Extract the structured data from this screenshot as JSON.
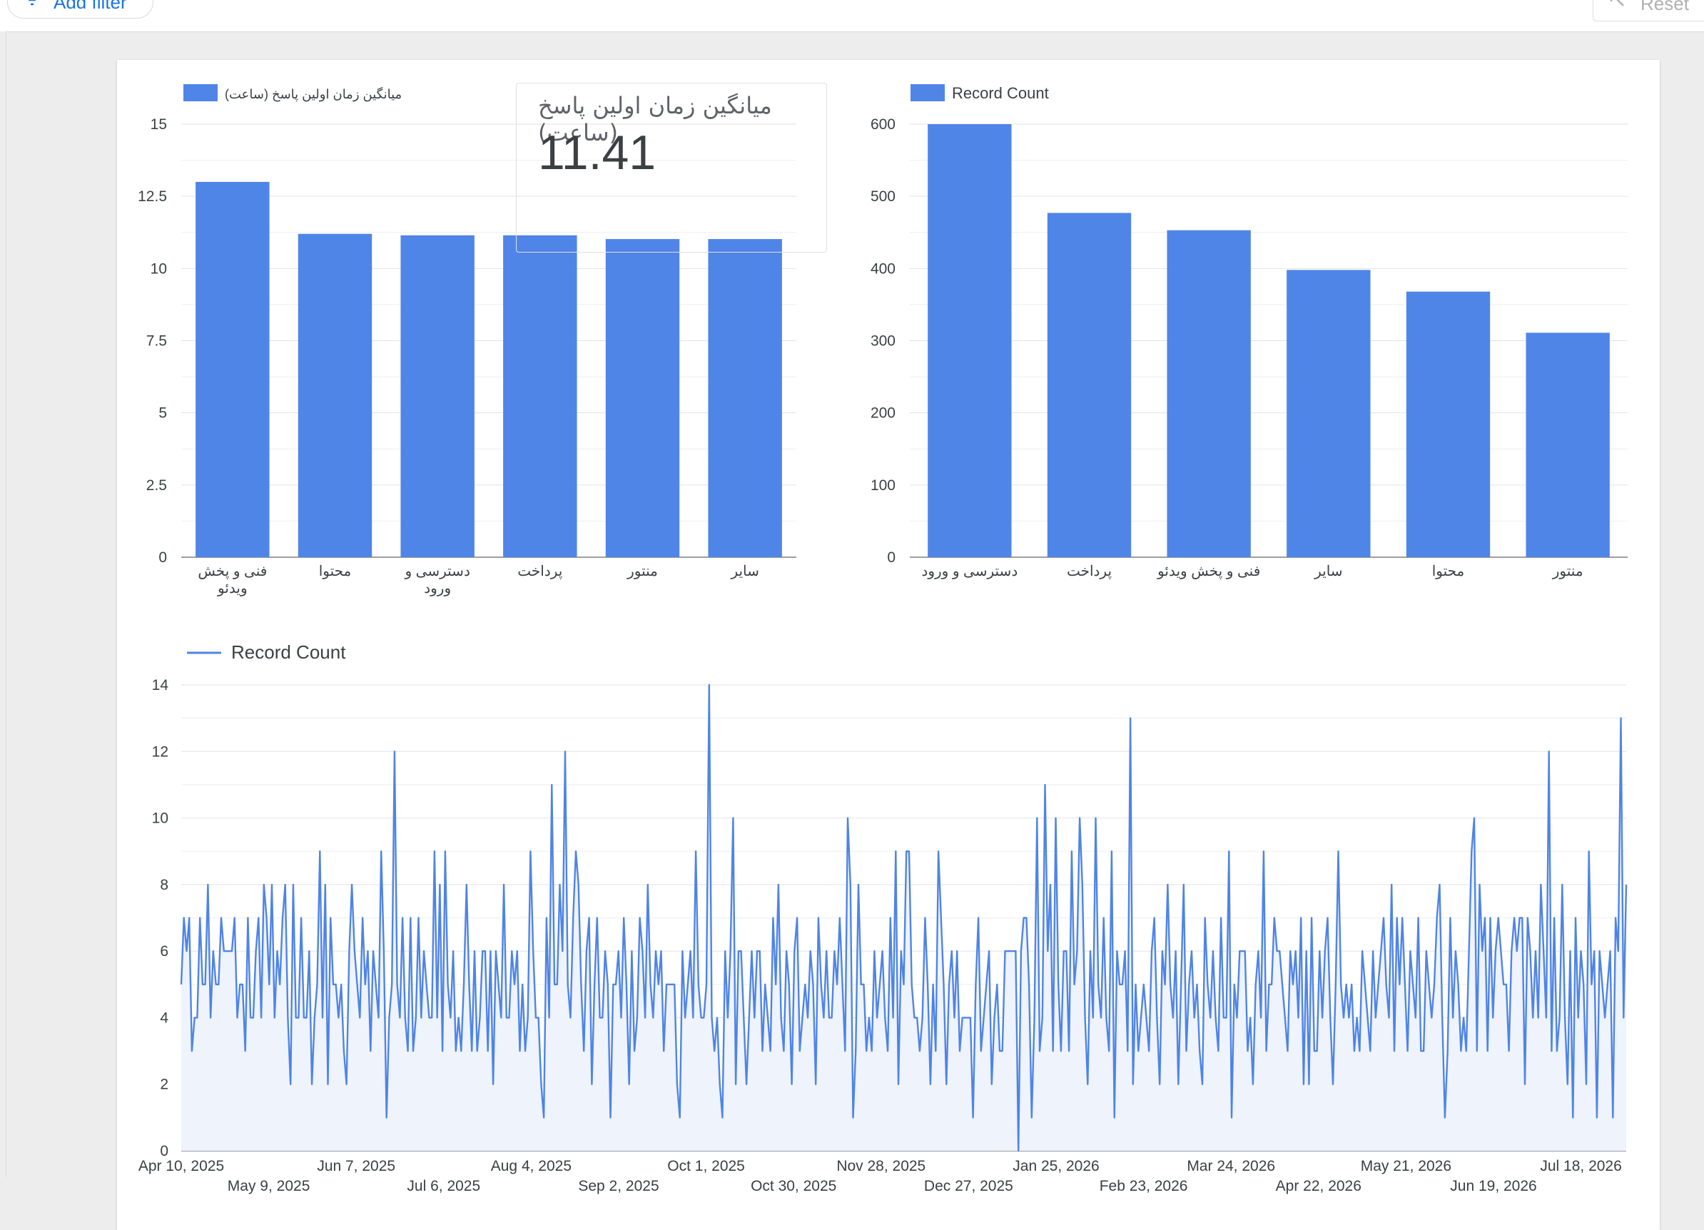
{
  "toolbar": {
    "add_filter_label": "Add filter",
    "reset_label": "Reset"
  },
  "scorecard": {
    "label": "میانگین زمان اولین پاسخ (ساعت)",
    "value": "11.41"
  },
  "colors": {
    "bar": "#5085e8",
    "line": "#4f84e6",
    "area": "#eef3fc",
    "grid": "#e2e2e2",
    "axis": "#9e9e9e",
    "text": "#3c4043"
  },
  "chart_data": [
    {
      "type": "bar",
      "legend": "میانگین زمان اولین پاسخ (ساعت)",
      "categories": [
        "فنی و پخش ویدئو",
        "محتوا",
        "دسترسی و ورود",
        "پرداخت",
        "منتور",
        "سایر"
      ],
      "values": [
        13.0,
        11.2,
        11.15,
        11.15,
        11.02,
        11.02
      ],
      "ylim": [
        0,
        15
      ],
      "yticks": [
        0,
        2.5,
        5,
        7.5,
        10,
        12.5,
        15
      ],
      "legend_position": "top-left",
      "grid": true
    },
    {
      "type": "bar",
      "legend": "Record Count",
      "categories": [
        "دسترسی و ورود",
        "پرداخت",
        "فنی و پخش ویدئو",
        "سایر",
        "محتوا",
        "منتور"
      ],
      "values": [
        600,
        477,
        453,
        398,
        368,
        311
      ],
      "ylim": [
        0,
        600
      ],
      "yticks": [
        0,
        100,
        200,
        300,
        400,
        500,
        600
      ],
      "legend_position": "top-left",
      "grid": true
    },
    {
      "type": "area",
      "legend": "Record Count",
      "x_start": "2025-04-10",
      "x_end": "2026-08-02",
      "ylim": [
        0,
        14
      ],
      "yticks": [
        0,
        2,
        4,
        6,
        8,
        10,
        12,
        14
      ],
      "xticks_row1": [
        "Apr 10, 2025",
        "Jun 7, 2025",
        "Aug 4, 2025",
        "Oct 1, 2025",
        "Nov 28, 2025",
        "Jan 25, 2026",
        "Mar 24, 2026",
        "May 21, 2026",
        "Jul 18, 2026"
      ],
      "xticks_row2": [
        "May 9, 2025",
        "Jul 6, 2025",
        "Sep 2, 2025",
        "Oct 30, 2025",
        "Dec 27, 2025",
        "Feb 23, 2026",
        "Apr 22, 2026",
        "Jun 19, 2026"
      ],
      "values": [
        5,
        7,
        6,
        7,
        3,
        4,
        4,
        7,
        5,
        5,
        8,
        4,
        6,
        5,
        5,
        7,
        6,
        6,
        6,
        6,
        7,
        4,
        5,
        5,
        3,
        7,
        4,
        4,
        6,
        7,
        4,
        8,
        7,
        5,
        8,
        4,
        6,
        5,
        7,
        8,
        4,
        2,
        8,
        4,
        4,
        7,
        4,
        4,
        6,
        2,
        4,
        5,
        9,
        4,
        8,
        2,
        7,
        5,
        5,
        4,
        5,
        3,
        2,
        6,
        8,
        6,
        5,
        4,
        7,
        5,
        6,
        3,
        6,
        5,
        4,
        9,
        6,
        1,
        4,
        5,
        12,
        5,
        4,
        7,
        4,
        3,
        7,
        3,
        4,
        7,
        4,
        6,
        5,
        4,
        4,
        9,
        4,
        8,
        3,
        9,
        5,
        4,
        6,
        3,
        4,
        3,
        5,
        8,
        5,
        3,
        6,
        3,
        4,
        6,
        6,
        3,
        6,
        2,
        6,
        5,
        4,
        8,
        4,
        4,
        6,
        5,
        6,
        3,
        5,
        3,
        4,
        9,
        6,
        4,
        4,
        2,
        1,
        7,
        4,
        11,
        5,
        5,
        8,
        6,
        12,
        5,
        4,
        7,
        9,
        8,
        5,
        3,
        6,
        7,
        2,
        5,
        7,
        4,
        4,
        6,
        5,
        1,
        5,
        5,
        6,
        4,
        7,
        5,
        2,
        6,
        3,
        4,
        7,
        6,
        4,
        8,
        5,
        4,
        6,
        5,
        6,
        3,
        5,
        5,
        5,
        5,
        2,
        1,
        6,
        4,
        5,
        6,
        4,
        9,
        5,
        4,
        4,
        5,
        14,
        4,
        3,
        4,
        2,
        1,
        6,
        4,
        6,
        10,
        2,
        6,
        6,
        4,
        2,
        4,
        6,
        4,
        6,
        6,
        3,
        5,
        4,
        3,
        7,
        5,
        8,
        4,
        3,
        6,
        5,
        2,
        6,
        7,
        3,
        4,
        5,
        4,
        6,
        5,
        2,
        7,
        5,
        4,
        6,
        4,
        4,
        6,
        5,
        7,
        5,
        3,
        10,
        8,
        1,
        3,
        8,
        5,
        5,
        3,
        4,
        3,
        6,
        4,
        5,
        6,
        4,
        3,
        7,
        4,
        9,
        2,
        6,
        5,
        9,
        9,
        5,
        4,
        4,
        3,
        4,
        7,
        5,
        2,
        5,
        3,
        9,
        7,
        5,
        2,
        5,
        6,
        4,
        6,
        3,
        4,
        4,
        4,
        4,
        1,
        5,
        7,
        3,
        4,
        5,
        6,
        2,
        4,
        5,
        3,
        3,
        6,
        6,
        6,
        6,
        6,
        0,
        6,
        7,
        7,
        5,
        1,
        4,
        10,
        3,
        4,
        11,
        6,
        8,
        3,
        10,
        5,
        3,
        6,
        6,
        3,
        9,
        5,
        6,
        10,
        8,
        4,
        2,
        6,
        4,
        10,
        5,
        4,
        7,
        4,
        3,
        9,
        1,
        6,
        5,
        5,
        6,
        3,
        13,
        2,
        5,
        3,
        4,
        5,
        4,
        3,
        6,
        7,
        4,
        2,
        6,
        5,
        8,
        5,
        4,
        6,
        2,
        5,
        8,
        3,
        5,
        6,
        4,
        5,
        3,
        2,
        7,
        5,
        4,
        6,
        4,
        3,
        7,
        4,
        4,
        9,
        1,
        5,
        4,
        6,
        6,
        6,
        3,
        4,
        2,
        5,
        6,
        4,
        9,
        3,
        5,
        5,
        7,
        6,
        6,
        5,
        4,
        3,
        6,
        5,
        6,
        4,
        7,
        2,
        6,
        2,
        7,
        3,
        3,
        6,
        4,
        6,
        7,
        4,
        2,
        5,
        9,
        5,
        4,
        5,
        4,
        5,
        3,
        4,
        3,
        6,
        5,
        4,
        3,
        6,
        4,
        5,
        6,
        7,
        5,
        4,
        8,
        3,
        7,
        5,
        7,
        5,
        3,
        6,
        5,
        4,
        7,
        3,
        3,
        6,
        5,
        4,
        5,
        7,
        8,
        4,
        1,
        3,
        7,
        4,
        6,
        5,
        3,
        4,
        3,
        6,
        9,
        10,
        3,
        8,
        6,
        7,
        3,
        7,
        4,
        6,
        7,
        6,
        5,
        5,
        3,
        6,
        7,
        6,
        7,
        7,
        2,
        7,
        6,
        4,
        6,
        4,
        8,
        6,
        4,
        12,
        3,
        7,
        3,
        4,
        8,
        4,
        2,
        6,
        1,
        7,
        4,
        6,
        5,
        2,
        9,
        5,
        6,
        1,
        6,
        5,
        4,
        5,
        6,
        1,
        7,
        6,
        13,
        4,
        8
      ]
    }
  ]
}
